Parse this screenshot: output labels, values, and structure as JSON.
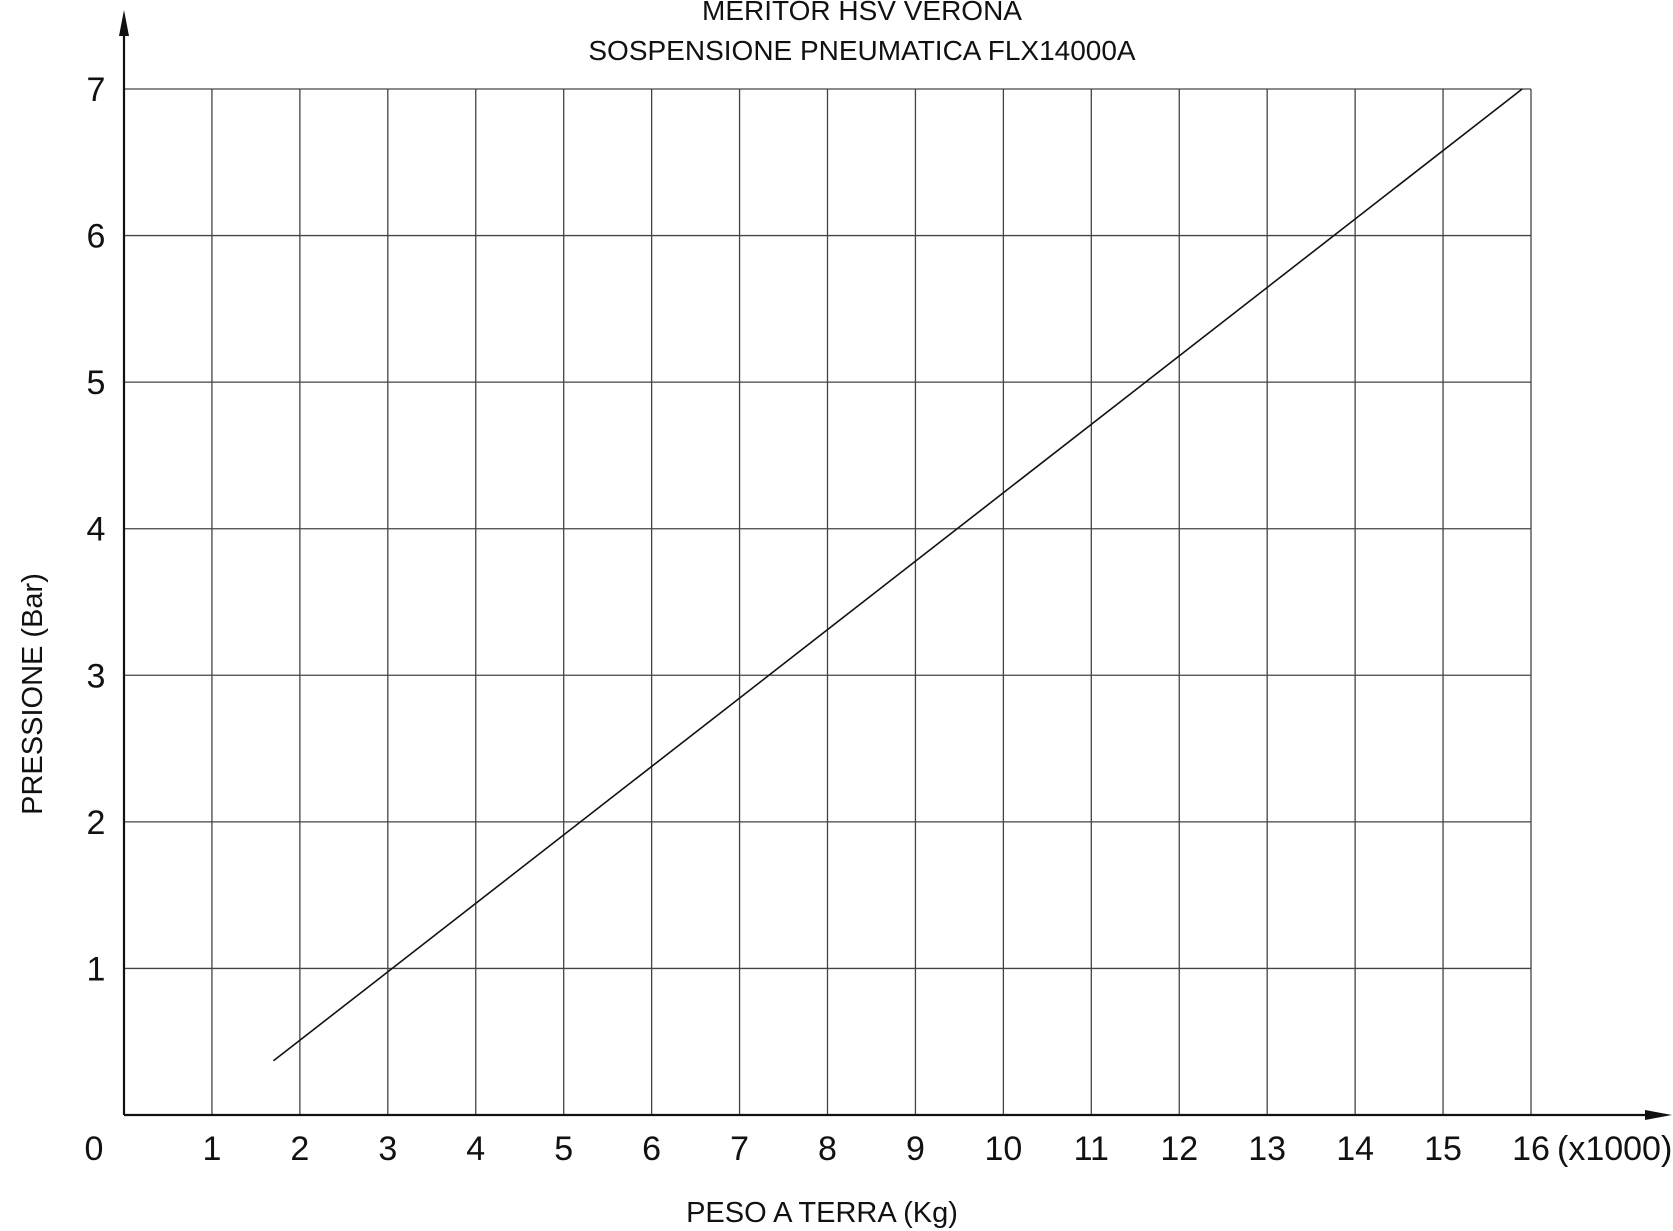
{
  "chart_data": {
    "type": "line",
    "title": "MERITOR HSV VERONA",
    "subtitle": "SOSPENSIONE PNEUMATICA FLX14000A",
    "xlabel": "PESO A TERRA (Kg)",
    "ylabel": "PRESSIONE (Bar)",
    "x_unit_note": "(x1000)",
    "origin_label": "0",
    "xlim": [
      0,
      16
    ],
    "ylim": [
      0,
      7
    ],
    "x_ticks": [
      "1",
      "2",
      "3",
      "4",
      "5",
      "6",
      "7",
      "8",
      "9",
      "10",
      "11",
      "12",
      "13",
      "14",
      "15",
      "16"
    ],
    "y_ticks": [
      "1",
      "2",
      "3",
      "4",
      "5",
      "6",
      "7"
    ],
    "grid": true,
    "series": [
      {
        "x": [
          1.7,
          15.9
        ],
        "y": [
          0.37,
          7.0
        ]
      }
    ],
    "colors": {
      "line": "#111111",
      "grid": "#444444",
      "axis": "#111111"
    }
  }
}
